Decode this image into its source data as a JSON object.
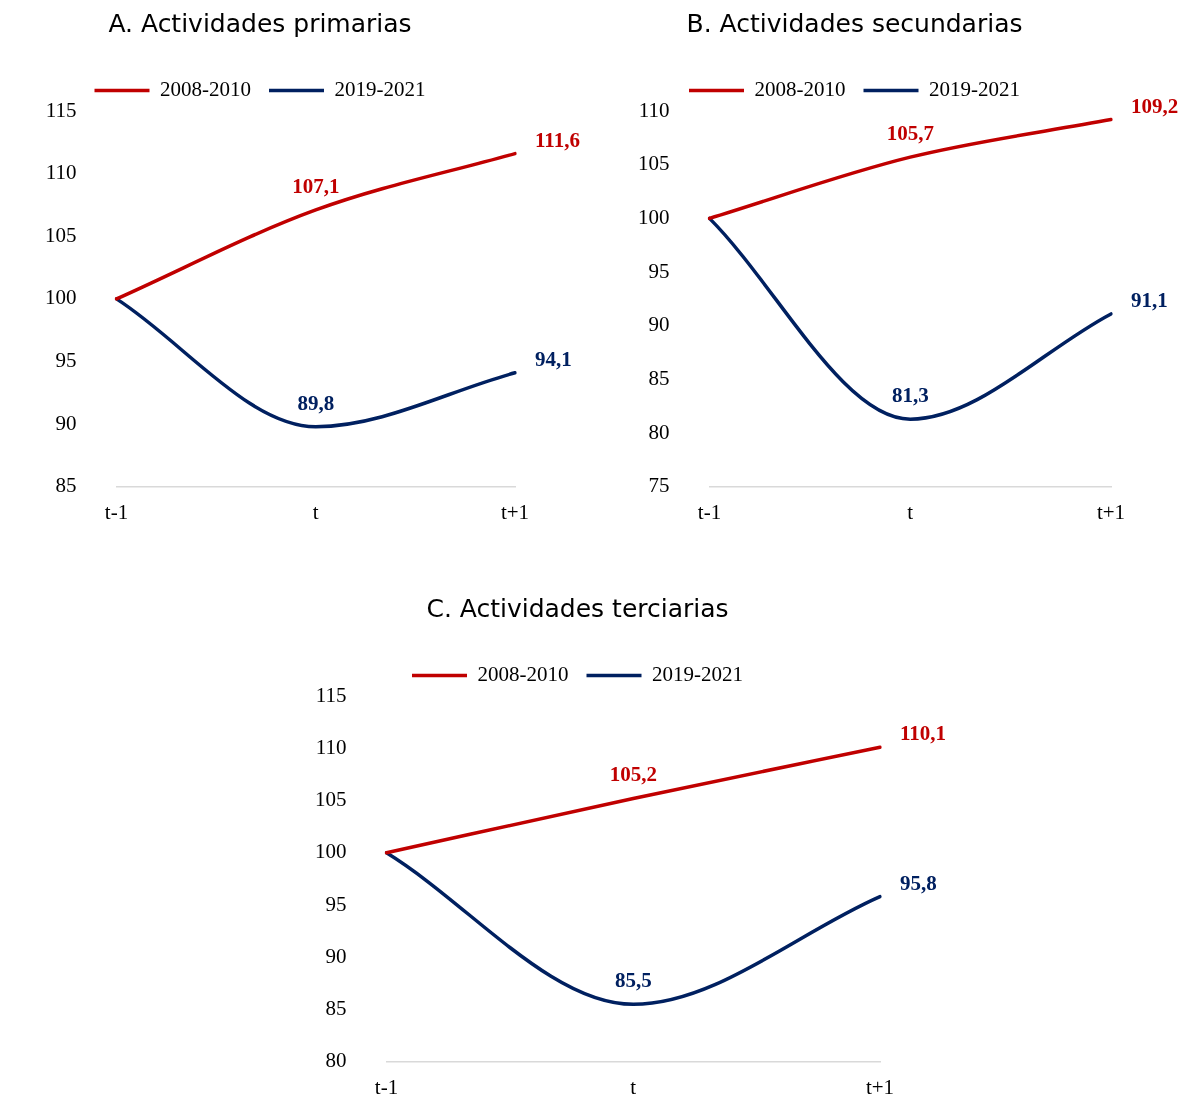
{
  "chart_data": [
    {
      "type": "line",
      "title": "A. Actividades primarias",
      "categories": [
        "t-1",
        "t",
        "t+1"
      ],
      "ylim": [
        85,
        115
      ],
      "yticks": [
        85,
        90,
        95,
        100,
        105,
        110,
        115
      ],
      "legend": "top",
      "series": [
        {
          "name": "2008-2010",
          "color": "#c00000",
          "values": [
            100,
            107.1,
            111.6
          ],
          "value_labels": [
            null,
            "107,1",
            "111,6"
          ]
        },
        {
          "name": "2019-2021",
          "color": "#002060",
          "values": [
            100,
            89.8,
            94.1
          ],
          "value_labels": [
            null,
            "89,8",
            "94,1"
          ]
        }
      ]
    },
    {
      "type": "line",
      "title": "B. Actividades secundarias",
      "categories": [
        "t-1",
        "t",
        "t+1"
      ],
      "ylim": [
        75,
        110
      ],
      "yticks": [
        75,
        80,
        85,
        90,
        95,
        100,
        105,
        110
      ],
      "legend": "top",
      "series": [
        {
          "name": "2008-2010",
          "color": "#c00000",
          "values": [
            100,
            105.7,
            109.2
          ],
          "value_labels": [
            null,
            "105,7",
            "109,2"
          ]
        },
        {
          "name": "2019-2021",
          "color": "#002060",
          "values": [
            100,
            81.3,
            91.1
          ],
          "value_labels": [
            null,
            "81,3",
            "91,1"
          ]
        }
      ]
    },
    {
      "type": "line",
      "title": "C. Actividades terciarias",
      "categories": [
        "t-1",
        "t",
        "t+1"
      ],
      "ylim": [
        80,
        115
      ],
      "yticks": [
        80,
        85,
        90,
        95,
        100,
        105,
        110,
        115
      ],
      "legend": "top",
      "series": [
        {
          "name": "2008-2010",
          "color": "#c00000",
          "values": [
            100,
            105.2,
            110.1
          ],
          "value_labels": [
            null,
            "105,2",
            "110,1"
          ]
        },
        {
          "name": "2019-2021",
          "color": "#002060",
          "values": [
            100,
            85.5,
            95.8
          ],
          "value_labels": [
            null,
            "85,5",
            "95,8"
          ]
        }
      ]
    }
  ]
}
